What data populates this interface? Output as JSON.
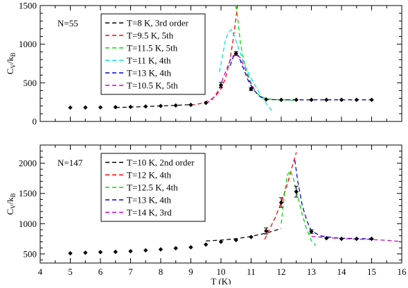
{
  "chart_data": [
    {
      "type": "scatter",
      "annotation": "N=55",
      "ylabel": "C_V/k_B",
      "xlabel": "",
      "xlim": [
        4,
        16
      ],
      "ylim": [
        0,
        1500
      ],
      "y_ticks": [
        0,
        500,
        1000,
        1500
      ],
      "y_minor_step": 100,
      "x_ticks": [
        4,
        5,
        6,
        7,
        8,
        9,
        10,
        11,
        12,
        13,
        14,
        15,
        16
      ],
      "show_x_tick_labels": false,
      "grid": false,
      "legend_position": "top-left",
      "points": {
        "x": [
          5,
          5.5,
          6,
          6.5,
          7,
          7.5,
          8,
          8.5,
          9,
          9.5,
          10,
          10.5,
          11,
          11.5,
          12,
          12.5,
          13,
          13.5,
          14,
          14.5,
          15
        ],
        "y": [
          180,
          180,
          182,
          185,
          188,
          194,
          200,
          207,
          215,
          240,
          470,
          880,
          420,
          285,
          280,
          280,
          280,
          280,
          280,
          280,
          280
        ],
        "err": [
          0,
          0,
          0,
          0,
          0,
          0,
          0,
          0,
          0,
          0,
          35,
          25,
          20,
          0,
          0,
          0,
          0,
          0,
          0,
          0,
          0
        ]
      },
      "series": [
        {
          "name": "T=8 K, 3rd order",
          "color": "#000000",
          "x": [
            6.5,
            7,
            7.5,
            8,
            8.5,
            9
          ],
          "y": [
            180,
            186,
            193,
            200,
            208,
            218
          ]
        },
        {
          "name": "T=9.5 K, 5th",
          "color": "#ff0000",
          "x": [
            9,
            9.3,
            9.6,
            9.8,
            10,
            10.15,
            10.3,
            10.4,
            10.5,
            10.55
          ],
          "y": [
            210,
            230,
            270,
            320,
            420,
            560,
            800,
            1050,
            1350,
            1500
          ]
        },
        {
          "name": "T=11.5 K, 5th",
          "color": "#00dd00",
          "x": [
            10.5,
            10.55,
            10.65,
            10.75,
            10.9,
            11.05,
            11.2,
            11.4,
            11.6,
            11.9,
            12.2,
            12.5
          ],
          "y": [
            1500,
            1350,
            1000,
            800,
            600,
            450,
            360,
            310,
            290,
            280,
            280,
            270
          ]
        },
        {
          "name": "T=11 K, 4th",
          "color": "#00e0e0",
          "x": [
            9.95,
            10.05,
            10.15,
            10.25,
            10.35,
            10.45,
            10.6,
            10.8,
            11,
            11.2,
            11.45,
            11.7
          ],
          "y": [
            640,
            850,
            1050,
            1160,
            1190,
            1100,
            930,
            720,
            560,
            420,
            260,
            130
          ]
        },
        {
          "name": "T=13 K, 4th",
          "color": "#0000cc",
          "x": [
            10.3,
            10.4,
            10.5,
            10.6,
            10.75,
            10.9,
            11.1,
            11.3,
            11.5,
            12,
            13,
            14,
            15
          ],
          "y": [
            720,
            830,
            880,
            830,
            680,
            530,
            400,
            320,
            285,
            280,
            280,
            280,
            280
          ]
        },
        {
          "name": "T=10.5 K, 5th",
          "color": "#cc00cc",
          "x": [
            9.5,
            9.7,
            9.9,
            10.05,
            10.2,
            10.35,
            10.5,
            10.65,
            10.8,
            10.95,
            11.1
          ],
          "y": [
            230,
            280,
            390,
            540,
            690,
            830,
            880,
            820,
            680,
            520,
            420
          ]
        }
      ]
    },
    {
      "type": "scatter",
      "annotation": "N=147",
      "ylabel": "C_V/k_B",
      "xlabel": "T (K)",
      "xlim": [
        4,
        16
      ],
      "ylim": [
        350,
        2300
      ],
      "y_ticks": [
        500,
        1000,
        1500,
        2000
      ],
      "y_minor_step": 100,
      "x_ticks": [
        4,
        5,
        6,
        7,
        8,
        9,
        10,
        11,
        12,
        13,
        14,
        15,
        16
      ],
      "show_x_tick_labels": true,
      "grid": false,
      "legend_position": "top-left",
      "points": {
        "x": [
          5,
          5.5,
          6,
          6.5,
          7,
          7.5,
          8,
          8.5,
          9,
          9.5,
          10,
          10.5,
          11,
          11.5,
          12,
          12.5,
          13,
          13.5,
          14,
          14.5,
          15
        ],
        "y": [
          510,
          520,
          530,
          535,
          545,
          560,
          575,
          595,
          610,
          655,
          700,
          730,
          780,
          880,
          1350,
          1530,
          870,
          760,
          750,
          750,
          750
        ],
        "err": [
          0,
          0,
          0,
          0,
          0,
          0,
          0,
          0,
          0,
          0,
          0,
          0,
          0,
          50,
          80,
          90,
          30,
          0,
          0,
          0,
          0
        ]
      },
      "series": [
        {
          "name": "T=10 K,  2nd order",
          "color": "#000000",
          "x": [
            9.5,
            10,
            10.5,
            11,
            11.5,
            12
          ],
          "y": [
            715,
            728,
            752,
            790,
            845,
            920
          ]
        },
        {
          "name": "T=12 K, 4th",
          "color": "#ff0000",
          "x": [
            11.45,
            11.6,
            11.8,
            12,
            12.2,
            12.35,
            12.5
          ],
          "y": [
            740,
            900,
            1100,
            1350,
            1650,
            1920,
            2180
          ]
        },
        {
          "name": "T=12.5 K, 4th",
          "color": "#00dd00",
          "x": [
            12,
            12.1,
            12.2,
            12.3,
            12.4,
            12.55,
            12.7,
            12.85,
            13,
            13.15
          ],
          "y": [
            1000,
            1450,
            1800,
            1880,
            1750,
            1450,
            1150,
            900,
            720,
            640
          ]
        },
        {
          "name": "T=13 K, 4th",
          "color": "#0000cc",
          "x": [
            12.45,
            12.55,
            12.7,
            12.85,
            13,
            13.3,
            13.7,
            14,
            15
          ],
          "y": [
            2050,
            1700,
            1300,
            1050,
            880,
            800,
            770,
            760,
            750
          ]
        },
        {
          "name": "T=14 K, 3rd",
          "color": "#cc00cc",
          "x": [
            13,
            13.5,
            14,
            14.5,
            15,
            15.5,
            16
          ],
          "y": [
            790,
            770,
            755,
            745,
            738,
            725,
            705
          ]
        }
      ]
    }
  ]
}
